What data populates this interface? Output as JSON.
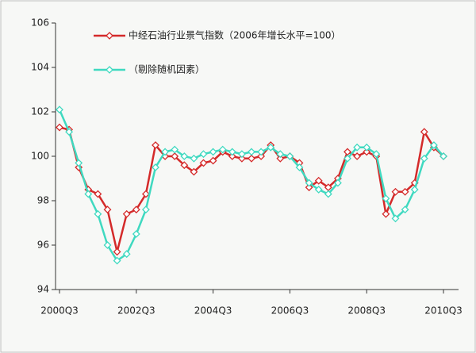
{
  "chart_data": {
    "type": "line",
    "categories": [
      "2000Q3",
      null,
      null,
      null,
      null,
      null,
      null,
      null,
      "2002Q3",
      null,
      null,
      null,
      null,
      null,
      null,
      null,
      "2004Q3",
      null,
      null,
      null,
      null,
      null,
      null,
      null,
      "2006Q3",
      null,
      null,
      null,
      null,
      null,
      null,
      null,
      "2008Q3",
      null,
      null,
      null,
      null,
      null,
      null,
      null,
      "2010Q3"
    ],
    "series": [
      {
        "name": "中经石油行业景气指数（2006年增长水平=100）",
        "color": "#d42a2a",
        "values": [
          101.3,
          101.2,
          99.5,
          98.5,
          98.3,
          97.6,
          95.7,
          97.4,
          97.6,
          98.3,
          100.5,
          100.0,
          100.0,
          99.6,
          99.3,
          99.7,
          99.8,
          100.2,
          100.0,
          99.9,
          99.9,
          100.0,
          100.5,
          99.9,
          100.0,
          99.7,
          98.6,
          98.9,
          98.6,
          99.0,
          100.2,
          100.0,
          100.2,
          100.0,
          97.4,
          98.4,
          98.4,
          98.8,
          101.1,
          100.4,
          100.0
        ]
      },
      {
        "name": "（剔除随机因素）",
        "color": "#3fd9c0",
        "values": [
          102.1,
          101.1,
          99.7,
          98.3,
          97.4,
          96.0,
          95.3,
          95.6,
          96.5,
          97.6,
          99.5,
          100.2,
          100.3,
          100.0,
          99.9,
          100.1,
          100.2,
          100.3,
          100.2,
          100.1,
          100.2,
          100.2,
          100.4,
          100.1,
          100.0,
          99.5,
          98.8,
          98.5,
          98.3,
          98.8,
          99.9,
          100.4,
          100.4,
          100.1,
          98.1,
          97.2,
          97.6,
          98.5,
          99.9,
          100.5,
          100.0
        ]
      }
    ],
    "ylim": [
      94,
      106
    ],
    "yticks": [
      94,
      96,
      98,
      100,
      102,
      104,
      106
    ],
    "grid": false
  }
}
